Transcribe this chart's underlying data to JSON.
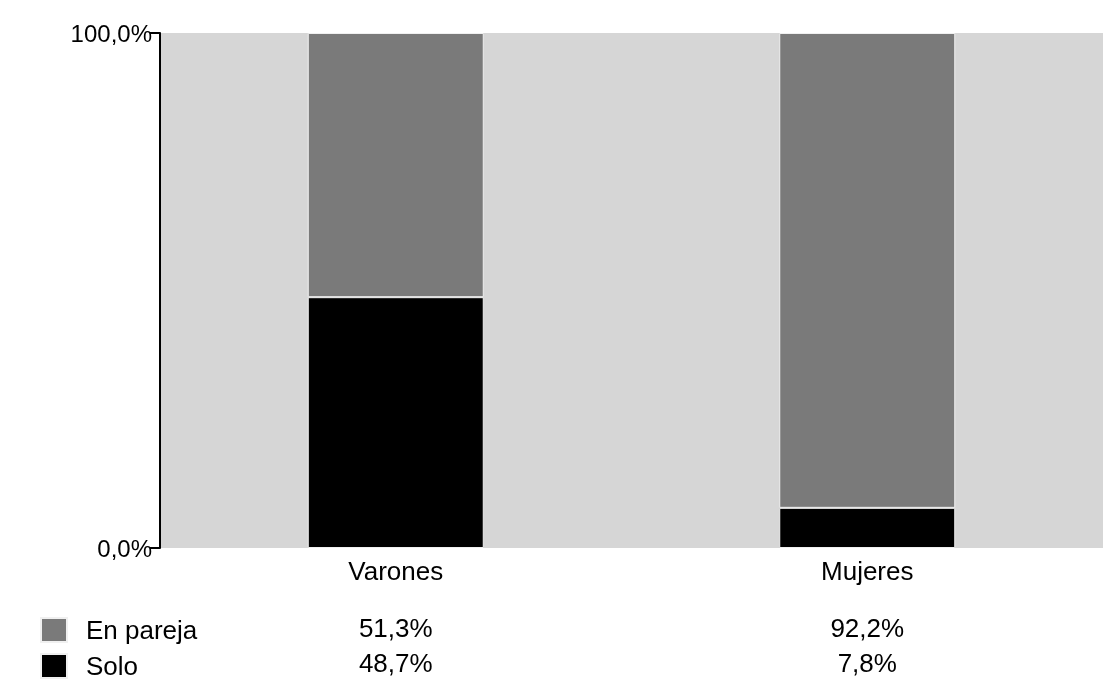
{
  "chart_data": {
    "type": "bar",
    "stacked": true,
    "categories": [
      "Varones",
      "Mujeres"
    ],
    "series": [
      {
        "name": "Solo",
        "color": "#000000",
        "values": [
          48.7,
          7.8
        ],
        "value_labels": [
          "48,7%",
          "7,8%"
        ]
      },
      {
        "name": "En pareja",
        "color": "#7a7a7a",
        "values": [
          51.3,
          92.2
        ],
        "value_labels": [
          "51,3%",
          "92,2%"
        ]
      }
    ],
    "ylim": [
      0,
      100
    ],
    "yticks": [
      {
        "value": 0,
        "label": "0,0%"
      },
      {
        "value": 100,
        "label": "100,0%"
      }
    ],
    "grid": false,
    "legend": "bottom left"
  }
}
